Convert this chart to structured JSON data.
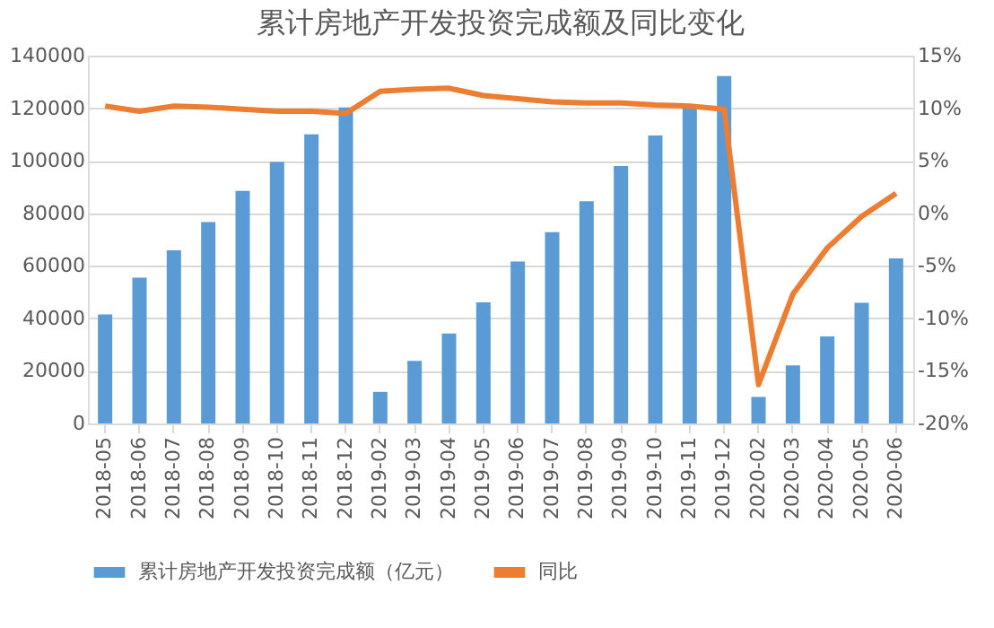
{
  "chart_data": {
    "type": "bar",
    "title": "累计房地产开发投资完成额及同比变化",
    "categories": [
      "2018-05",
      "2018-06",
      "2018-07",
      "2018-08",
      "2018-09",
      "2018-10",
      "2018-11",
      "2018-12",
      "2019-02",
      "2019-03",
      "2019-04",
      "2019-05",
      "2019-06",
      "2019-07",
      "2019-08",
      "2019-09",
      "2019-10",
      "2019-11",
      "2019-12",
      "2020-02",
      "2020-03",
      "2020-04",
      "2020-05",
      "2020-06"
    ],
    "series": [
      {
        "name": "累计房地产开发投资完成额（亿元）",
        "color": "#5b9bd5",
        "values": [
          41500,
          55500,
          65900,
          76700,
          88500,
          99500,
          110000,
          120300,
          12000,
          23800,
          34200,
          46100,
          61600,
          72800,
          84600,
          98000,
          109600,
          121300,
          132200,
          10100,
          22100,
          33100,
          45900,
          62800
        ]
      },
      {
        "name": "同比",
        "type": "line",
        "axis": "y2",
        "color": "#ed7d31",
        "values": [
          10.2,
          9.7,
          10.2,
          10.1,
          9.9,
          9.7,
          9.7,
          9.5,
          11.6,
          11.8,
          11.9,
          11.2,
          10.9,
          10.6,
          10.5,
          10.5,
          10.3,
          10.2,
          9.9,
          -16.3,
          -7.7,
          -3.3,
          -0.3,
          1.9
        ]
      }
    ],
    "ylim": [
      0,
      140000
    ],
    "yticks": [
      0,
      20000,
      40000,
      60000,
      80000,
      100000,
      120000,
      140000
    ],
    "y2lim": [
      -20,
      15
    ],
    "y2ticks": [
      {
        "value": -20,
        "label": "-20%"
      },
      {
        "value": -15,
        "label": "-15%"
      },
      {
        "value": -10,
        "label": "-10%"
      },
      {
        "value": -5,
        "label": "-5%"
      },
      {
        "value": 0,
        "label": "0%"
      },
      {
        "value": 5,
        "label": "5%"
      },
      {
        "value": 10,
        "label": "10%"
      },
      {
        "value": 15,
        "label": "15%"
      }
    ],
    "grid": "y",
    "legend": "bottom",
    "marker": "none",
    "line_style": "solid"
  }
}
